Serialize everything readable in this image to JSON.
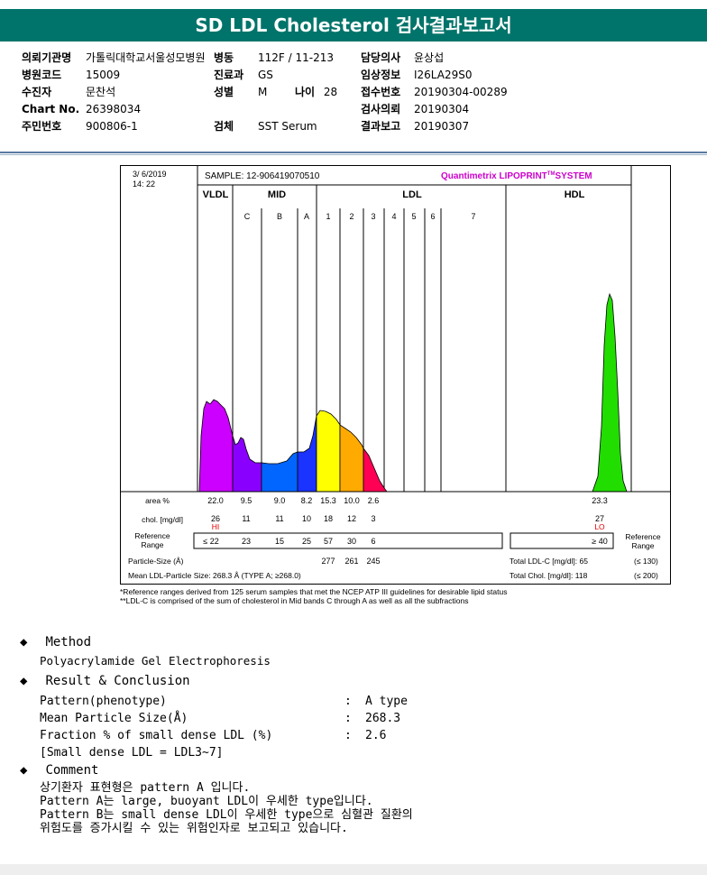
{
  "report_title": "SD LDL Cholesterol 검사결과보고서",
  "header": {
    "col1": [
      {
        "key": "의뢰기관명",
        "value": "가톨릭대학교서울성모병원"
      },
      {
        "key": "병원코드",
        "value": "15009"
      },
      {
        "key": "수진자",
        "value": "문찬석"
      },
      {
        "key": "Chart No.",
        "value": "26398034"
      },
      {
        "key": "주민번호",
        "value": "900806-1"
      }
    ],
    "ward_key": "병동",
    "ward_value": "112F / 11-213",
    "dept_key": "진료과",
    "dept_value": "GS",
    "sex_key": "성별",
    "sex_value": "M",
    "age_key": "나이",
    "age_value": "28",
    "specimen_key": "검체",
    "specimen_value": "SST Serum",
    "col3": [
      {
        "key": "담당의사",
        "value": "윤상섭"
      },
      {
        "key": "임상정보",
        "value": "I26LA29S0"
      },
      {
        "key": "접수번호",
        "value": "20190304-00289"
      },
      {
        "key": "검사의뢰",
        "value": "20190304"
      },
      {
        "key": "결과보고",
        "value": "20190307"
      }
    ]
  },
  "chart": {
    "date": "3/ 6/2019",
    "time": "14: 22",
    "sample_label": "SAMPLE:  12-906419070510",
    "system_label": "Quantimetrix LIPOPRINT",
    "system_tm": "TM",
    "system_suffix": "SYSTEM",
    "group_vldl": "VLDL",
    "group_mid": "MID",
    "group_ldl": "LDL",
    "group_hdl": "HDL",
    "bands": [
      "C",
      "B",
      "A",
      "1",
      "2",
      "3",
      "4",
      "5",
      "6",
      "7"
    ],
    "row_area_label": "area %",
    "row_chol_label": "chol. [mg/dl]",
    "row_ref_label1": "Reference",
    "row_ref_label2": "Range",
    "row_ref_label_right1": "Reference",
    "row_ref_label_right2": "Range",
    "area_values": [
      "22.0",
      "9.5",
      "9.0",
      "8.2",
      "15.3",
      "10.0",
      "2.6"
    ],
    "area_hdl": "23.3",
    "chol_values": [
      "26",
      "11",
      "11",
      "10",
      "18",
      "12",
      "3"
    ],
    "chol_hdl": "27",
    "flag_vldl": "HI",
    "flag_hdl": "LO",
    "ref_values": [
      "≤ 22",
      "23",
      "15",
      "25",
      "57",
      "30",
      "6"
    ],
    "ref_hdl": "≥ 40",
    "particle_size_label": "Particle-Size (Å)",
    "particle_sizes": [
      "277",
      "261",
      "245"
    ],
    "mean_size_label": "Mean LDL-Particle Size:  268.3 Å  (TYPE A; ≥268.0)",
    "total_ldl_label": "Total LDL-C [mg/dl]: 65",
    "total_ldl_ref": "(≤ 130)",
    "total_chol_label": "Total Chol. [mg/dl]:   118",
    "total_chol_ref": "(≤ 200)",
    "footnote1": "*Reference ranges derived from 125 serum samples that met the NCEP ATP III guidelines for desirable lipid status",
    "footnote2": "**LDL-C is comprised of the sum of cholesterol in Mid bands C through A as well as all the subfractions",
    "colors": {
      "vldl": "#cc00ff",
      "c": "#8a00ff",
      "b": "#0066ff",
      "a": "#1a33ff",
      "l1": "#ffff00",
      "l2": "#ffaa00",
      "l3": "#ff0055",
      "hdl": "#22dd00"
    }
  },
  "chart_data": {
    "type": "area",
    "title": "",
    "categories": [
      "VLDL",
      "MID C",
      "MID B",
      "MID A",
      "LDL 1",
      "LDL 2",
      "LDL 3",
      "LDL 4",
      "LDL 5",
      "LDL 6",
      "LDL 7",
      "HDL"
    ],
    "series": [
      {
        "name": "area %",
        "values": [
          22.0,
          9.5,
          9.0,
          8.2,
          15.3,
          10.0,
          2.6,
          null,
          null,
          null,
          null,
          23.3
        ]
      },
      {
        "name": "chol. [mg/dl]",
        "values": [
          26,
          11,
          11,
          10,
          18,
          12,
          3,
          null,
          null,
          null,
          null,
          27
        ]
      }
    ]
  },
  "method": {
    "heading": "Method",
    "text": "Polyacrylamide Gel Electrophoresis"
  },
  "result": {
    "heading": "Result & Conclusion",
    "rows": [
      {
        "label": "Pattern(phenotype)",
        "colon": ":",
        "value": "A type"
      },
      {
        "label": "Mean Particle Size(Å)",
        "colon": ":",
        "value": "268.3"
      },
      {
        "label": "Fraction % of small dense LDL (%)",
        "colon": ":",
        "value": "2.6"
      }
    ],
    "note": "[Small dense LDL = LDL3~7]"
  },
  "comment": {
    "heading": "Comment",
    "lines": [
      "상기환자 표현형은 pattern A 입니다.",
      "Pattern A는 large, buoyant LDL이 우세한 type입니다.",
      "Pattern B는 small dense LDL이 우세한 type으로 심혈관 질환의",
      "위험도를 증가시킬 수 있는 위험인자로 보고되고 있습니다."
    ]
  }
}
